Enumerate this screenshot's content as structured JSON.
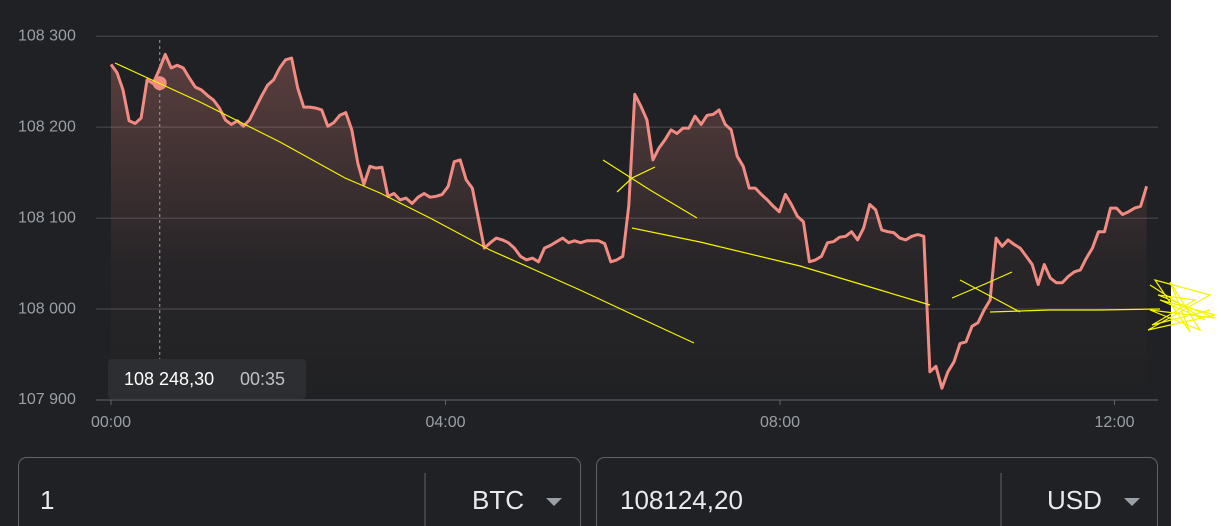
{
  "chart_data": {
    "type": "line",
    "color": "#f28b82",
    "grid": true,
    "x": [
      0,
      0.072,
      0.144,
      0.216,
      0.288,
      0.36,
      0.432,
      0.504,
      0.576,
      0.648,
      0.72,
      0.792,
      0.864,
      0.936,
      1.008,
      1.08,
      1.152,
      1.224,
      1.296,
      1.368,
      1.44,
      1.512,
      1.584,
      1.656,
      1.728,
      1.8,
      1.872,
      1.944,
      2.016,
      2.088,
      2.16,
      2.232,
      2.304,
      2.376,
      2.448,
      2.52,
      2.592,
      2.664,
      2.736,
      2.808,
      2.88,
      2.952,
      3.024,
      3.096,
      3.168,
      3.24,
      3.312,
      3.384,
      3.456,
      3.528,
      3.6,
      3.672,
      3.744,
      3.816,
      3.888,
      3.96,
      4.032,
      4.104,
      4.176,
      4.248,
      4.32,
      4.392,
      4.464,
      4.536,
      4.608,
      4.68,
      4.752,
      4.824,
      4.896,
      4.968,
      5.04,
      5.112,
      5.184,
      5.256,
      5.328,
      5.4,
      5.472,
      5.544,
      5.616,
      5.688,
      5.76,
      5.832,
      5.904,
      5.976,
      6.048,
      6.12,
      6.192,
      6.264,
      6.336,
      6.408,
      6.48,
      6.552,
      6.624,
      6.696,
      6.768,
      6.84,
      6.912,
      6.984,
      7.056,
      7.128,
      7.2,
      7.272,
      7.344,
      7.416,
      7.488,
      7.56,
      7.632,
      7.704,
      7.776,
      7.848,
      7.92,
      7.992,
      8.064,
      8.136,
      8.208,
      8.28,
      8.352,
      8.424,
      8.496,
      8.568,
      8.64,
      8.712,
      8.784,
      8.856,
      8.928,
      9,
      9.072,
      9.144,
      9.216,
      9.288,
      9.36,
      9.432,
      9.504,
      9.576,
      9.648,
      9.72,
      9.792,
      9.864,
      9.936,
      10.008,
      10.08,
      10.152,
      10.224,
      10.296,
      10.368,
      10.44,
      10.512,
      10.584,
      10.656,
      10.728,
      10.8,
      10.872,
      10.944,
      11.016,
      11.088,
      11.16,
      11.232,
      11.304,
      11.376,
      11.448,
      11.52,
      11.592,
      11.664,
      11.736,
      11.808,
      11.88,
      11.952,
      12.024,
      12.096,
      12.168,
      12.24,
      12.312,
      12.384
    ],
    "values": [
      108269,
      108260,
      108241,
      108207,
      108204,
      108210,
      108252,
      108248,
      108263,
      108280,
      108265,
      108268,
      108265,
      108254,
      108244,
      108241,
      108235,
      108230,
      108221,
      108208,
      108203,
      108207,
      108201,
      108208,
      108221,
      108234,
      108246,
      108252,
      108265,
      108274,
      108276,
      108243,
      108222,
      108222,
      108221,
      108219,
      108201,
      108205,
      108213,
      108216,
      108197,
      108160,
      108137,
      108157,
      108155,
      108156,
      108124,
      108127,
      108120,
      108122,
      108116,
      108123,
      108127,
      108123,
      108124,
      108126,
      108135,
      108162,
      108164,
      108142,
      108133,
      108100,
      108067,
      108073,
      108078,
      108076,
      108073,
      108067,
      108058,
      108054,
      108056,
      108052,
      108067,
      108070,
      108074,
      108078,
      108073,
      108075,
      108073,
      108075,
      108075,
      108075,
      108072,
      108052,
      108054,
      108058,
      108114,
      108236,
      108223,
      108208,
      108164,
      108177,
      108186,
      108197,
      108193,
      108199,
      108199,
      108212,
      108203,
      108213,
      108214,
      108219,
      108203,
      108197,
      108168,
      108157,
      108133,
      108133,
      108126,
      108120,
      108113,
      108107,
      108126,
      108115,
      108102,
      108096,
      108052,
      108054,
      108058,
      108073,
      108074,
      108079,
      108080,
      108085,
      108076,
      108089,
      108115,
      108109,
      108087,
      108085,
      108084,
      108078,
      108076,
      108080,
      108082,
      108080,
      107931,
      107937,
      107913,
      107931,
      107942,
      107962,
      107964,
      107981,
      107985,
      107999,
      108010,
      108078,
      108069,
      108076,
      108071,
      108067,
      108058,
      108049,
      108027,
      108049,
      108034,
      108029,
      108029,
      108036,
      108041,
      108043,
      108056,
      108067,
      108085,
      108085,
      108111,
      108111,
      108104,
      108107,
      108111,
      108113,
      108135
    ],
    "xlim": [
      0,
      12.52
    ],
    "ylim": [
      107900,
      108320
    ],
    "xticks": [
      {
        "value": 0,
        "label": "00:00"
      },
      {
        "value": 4,
        "label": "04:00"
      },
      {
        "value": 8,
        "label": "08:00"
      },
      {
        "value": 12,
        "label": "12:00"
      }
    ],
    "yticks": [
      {
        "value": 107900,
        "label": "107 900"
      },
      {
        "value": 108000,
        "label": "108 000"
      },
      {
        "value": 108100,
        "label": "108 100"
      },
      {
        "value": 108200,
        "label": "108 200"
      },
      {
        "value": 108300,
        "label": "108 300"
      }
    ],
    "tooltip": {
      "x": 0.583,
      "value": 108248.3,
      "value_label": "108 248,30",
      "time_label": "00:35"
    }
  },
  "converter": {
    "amount": "1",
    "from": "BTC",
    "result": "108124,20",
    "to": "USD"
  }
}
